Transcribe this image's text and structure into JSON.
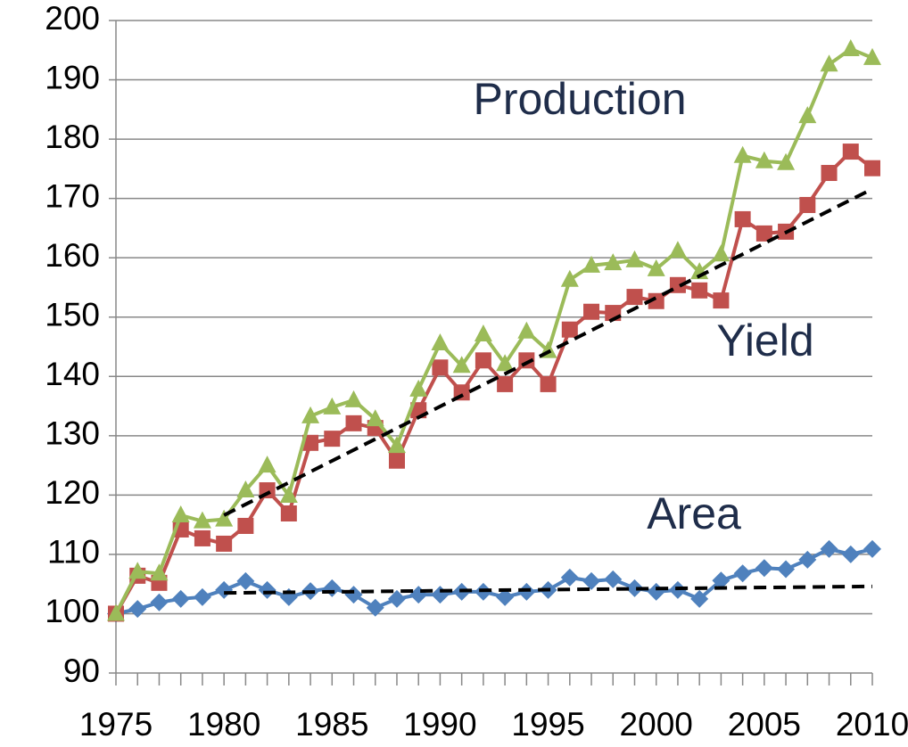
{
  "chart_data": {
    "type": "line",
    "x": [
      1975,
      1976,
      1977,
      1978,
      1979,
      1980,
      1981,
      1982,
      1983,
      1984,
      1985,
      1986,
      1987,
      1988,
      1989,
      1990,
      1991,
      1992,
      1993,
      1994,
      1995,
      1996,
      1997,
      1998,
      1999,
      2000,
      2001,
      2002,
      2003,
      2004,
      2005,
      2006,
      2007,
      2008,
      2009,
      2010
    ],
    "xlim": [
      1975,
      2010
    ],
    "xticks": [
      1975,
      1980,
      1985,
      1990,
      1995,
      2000,
      2005,
      2010
    ],
    "ylim": [
      90,
      200
    ],
    "yticks": [
      90,
      100,
      110,
      120,
      130,
      140,
      150,
      160,
      170,
      180,
      190,
      200
    ],
    "grid": true,
    "series": [
      {
        "name": "Area",
        "color": "#4f81bd",
        "marker": "diamond",
        "values": [
          100,
          100.8,
          101.9,
          102.5,
          102.8,
          104,
          105.5,
          104,
          102.8,
          103.8,
          104.3,
          103.2,
          101,
          102.5,
          103.2,
          103.2,
          103.7,
          103.7,
          102.8,
          103.7,
          104,
          106.1,
          105.5,
          105.8,
          104.3,
          103.7,
          104,
          102.5,
          105.6,
          106.8,
          107.7,
          107.5,
          109.1,
          110.9,
          110,
          110.9
        ]
      },
      {
        "name": "Yield",
        "color": "#c0504d",
        "marker": "square",
        "values": [
          100,
          106.4,
          105.2,
          114.2,
          112.7,
          111.8,
          114.8,
          120.8,
          116.9,
          128.8,
          129.5,
          132.1,
          131.3,
          125.8,
          134.3,
          141.5,
          137.3,
          142.7,
          138.7,
          142.7,
          138.7,
          147.9,
          150.9,
          150.7,
          153.4,
          152.7,
          155.4,
          154.5,
          152.8,
          166.5,
          164.1,
          164.4,
          168.9,
          174.3,
          177.9,
          175.1
        ]
      },
      {
        "name": "Production",
        "color": "#9bbb59",
        "marker": "triangle",
        "values": [
          100,
          107.1,
          106.8,
          116.6,
          115.6,
          115.9,
          120.8,
          125,
          119.9,
          133.3,
          134.8,
          136,
          132.8,
          128.3,
          137.8,
          145.6,
          141.8,
          147.1,
          142.1,
          147.6,
          144.3,
          156.3,
          158.7,
          159.1,
          159.6,
          158.1,
          161.2,
          157.6,
          160.6,
          177.2,
          176.3,
          176,
          183.9,
          192.6,
          195.2,
          193.7
        ]
      }
    ],
    "trendlines": [
      {
        "color": "#000000",
        "x": [
          1980,
          2010
        ],
        "values": [
          116.6,
          171.6
        ]
      },
      {
        "color": "#000000",
        "x": [
          1980,
          2010
        ],
        "values": [
          103.5,
          104.6
        ]
      }
    ]
  }
}
